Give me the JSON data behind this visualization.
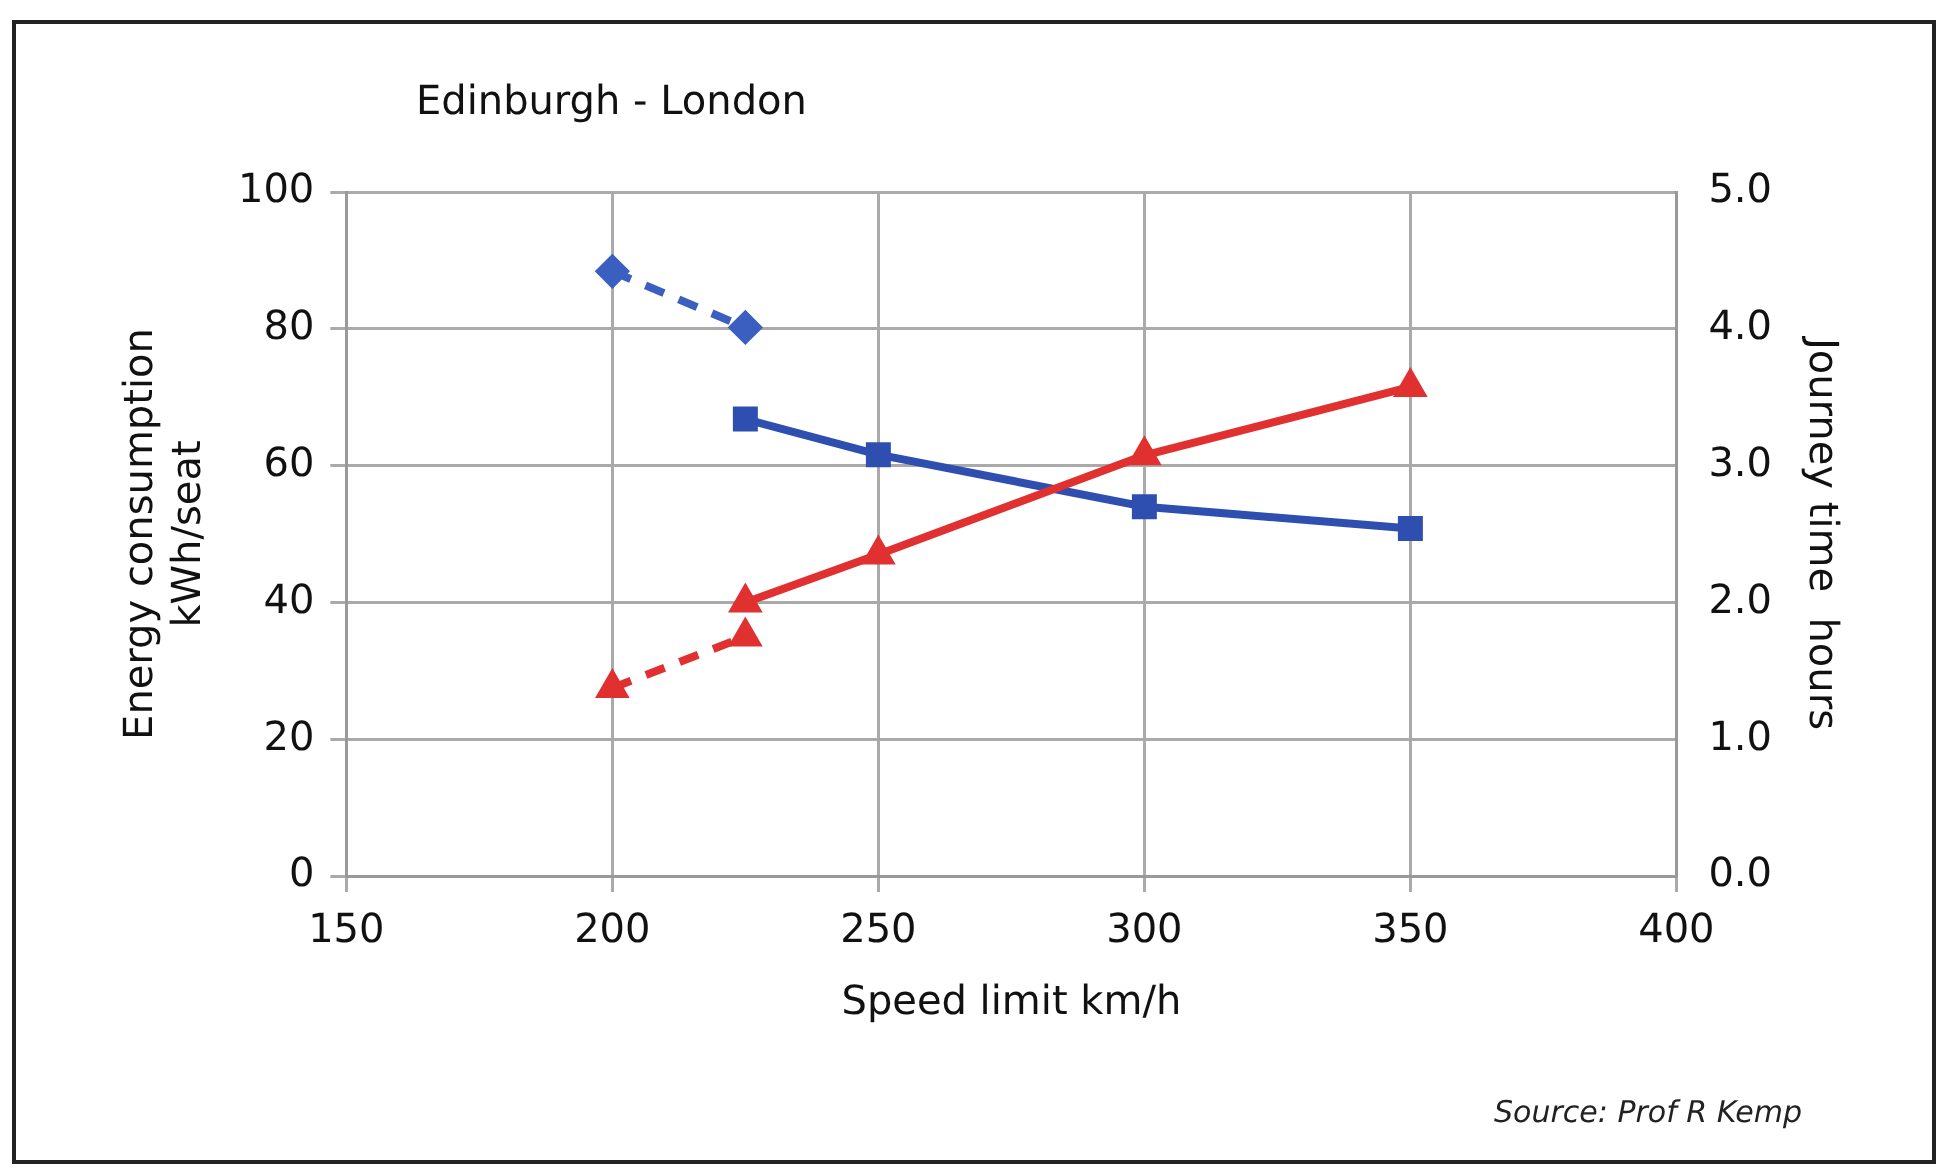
{
  "chart_data": {
    "type": "line",
    "title": "Edinburgh - London",
    "xlabel": "Speed limit km/h",
    "ylabel": "Energy consumption\nkWh/seat",
    "y2label": "Journey time  hours",
    "annotations": [
      "Source: Prof R Kemp"
    ],
    "xlim": [
      150,
      400
    ],
    "xticks": [
      150,
      200,
      250,
      300,
      350,
      400
    ],
    "ylim": [
      0,
      100
    ],
    "yticks": [
      0,
      20,
      40,
      60,
      80,
      100
    ],
    "y2lim": [
      0,
      5
    ],
    "y2ticks": [
      {
        "value": 0,
        "label": "0.0"
      },
      {
        "value": 1,
        "label": "1.0"
      },
      {
        "value": 2,
        "label": "2.0"
      },
      {
        "value": 3,
        "label": "3.0"
      },
      {
        "value": 4,
        "label": "4.0"
      },
      {
        "value": 5,
        "label": "5.0"
      }
    ],
    "grid": true,
    "series": [
      {
        "color": "#e03030",
        "x": [
          225,
          250,
          300,
          350
        ],
        "values": [
          40,
          47,
          61.5,
          71.5
        ],
        "marker": "triangle",
        "line_style": "solid"
      },
      {
        "color": "#e03030",
        "x": [
          200,
          225
        ],
        "values": [
          27.5,
          35
        ],
        "marker": "triangle",
        "line_style": "dashed"
      },
      {
        "color": "#2f4fb0",
        "x": [
          225,
          250,
          300,
          350
        ],
        "values": [
          3.34,
          3.08,
          2.7,
          2.54
        ],
        "axis": "y2",
        "marker": "square",
        "line_style": "solid"
      },
      {
        "color": "#3a5fc0",
        "x": [
          200,
          225
        ],
        "values": [
          4.42,
          4.01
        ],
        "axis": "y2",
        "marker": "diamond",
        "line_style": "dashed"
      }
    ]
  }
}
